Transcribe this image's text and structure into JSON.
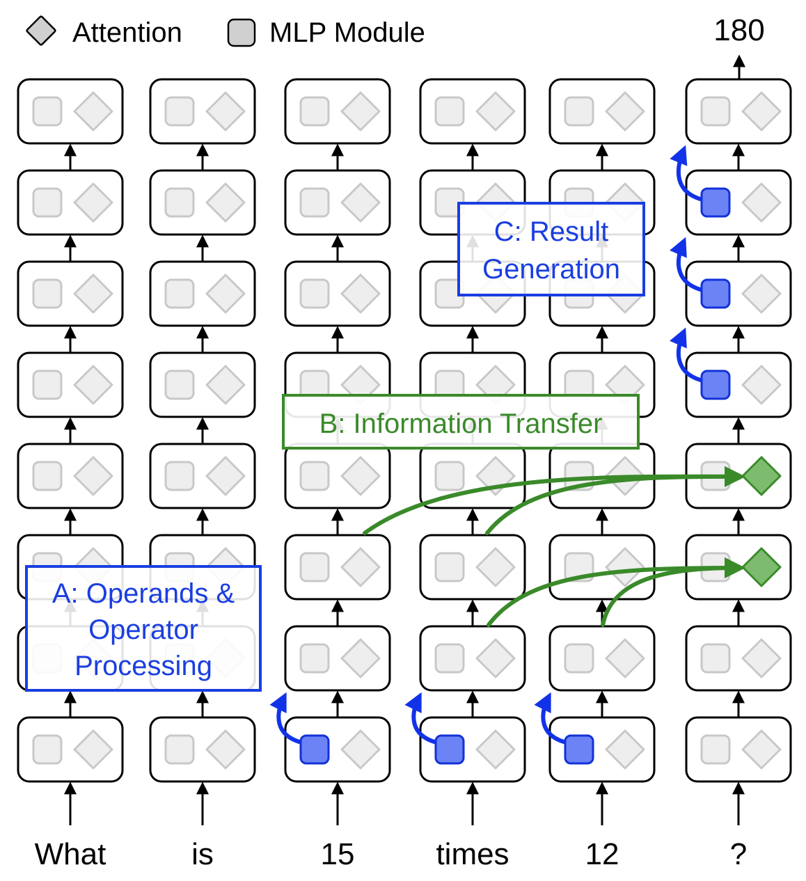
{
  "legend": {
    "attention_label": "Attention",
    "mlp_label": "MLP Module"
  },
  "output_token": "180",
  "tokens": [
    "What",
    "is",
    "15",
    "times",
    "12",
    "?"
  ],
  "layer_count": 8,
  "annotations": {
    "a_lines": [
      "A: Operands &",
      "Operator",
      "Processing"
    ],
    "b_lines": [
      "B: Information Transfer"
    ],
    "c_lines": [
      "C: Result",
      "Generation"
    ]
  },
  "colors": {
    "box_stroke": "#000000",
    "inactive_shape": "#c8c8c8",
    "inactive_fill": "#eeeeee",
    "mlp_active_fill": "#6b83f5",
    "mlp_active_stroke": "#1232d8",
    "attn_active_fill": "#7dbb6e",
    "attn_active_stroke": "#3a8a2a",
    "blue_label": "#1a3ee0",
    "green_label": "#3a8a2a",
    "blue_arrow": "#1232e8",
    "green_arrow": "#3a8a2a",
    "legend_shape_fill": "#d0d0d0"
  },
  "highlights": {
    "active_mlp": [
      [
        2,
        0
      ],
      [
        3,
        0
      ],
      [
        4,
        0
      ],
      [
        5,
        4
      ],
      [
        5,
        5
      ],
      [
        5,
        6
      ]
    ],
    "active_attention": [
      [
        5,
        2
      ],
      [
        5,
        3
      ]
    ]
  }
}
